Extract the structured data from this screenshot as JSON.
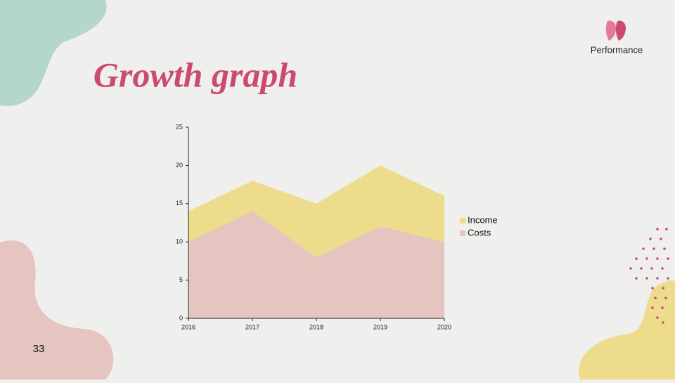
{
  "header": {
    "brand": "Performance"
  },
  "slide_title": "Growth graph",
  "page_number": "33",
  "chart_data": {
    "type": "area",
    "categories": [
      "2016",
      "2017",
      "2018",
      "2019",
      "2020"
    ],
    "series": [
      {
        "name": "Income",
        "color": "#ecdc8c",
        "values": [
          14,
          18,
          15,
          20,
          16
        ]
      },
      {
        "name": "Costs",
        "color": "#e5c5c0",
        "values": [
          10,
          14,
          8,
          12,
          10
        ]
      }
    ],
    "ylim": [
      0,
      25
    ],
    "yticks": [
      0,
      5,
      10,
      15,
      20,
      25
    ],
    "grid": false,
    "legend": "right"
  }
}
